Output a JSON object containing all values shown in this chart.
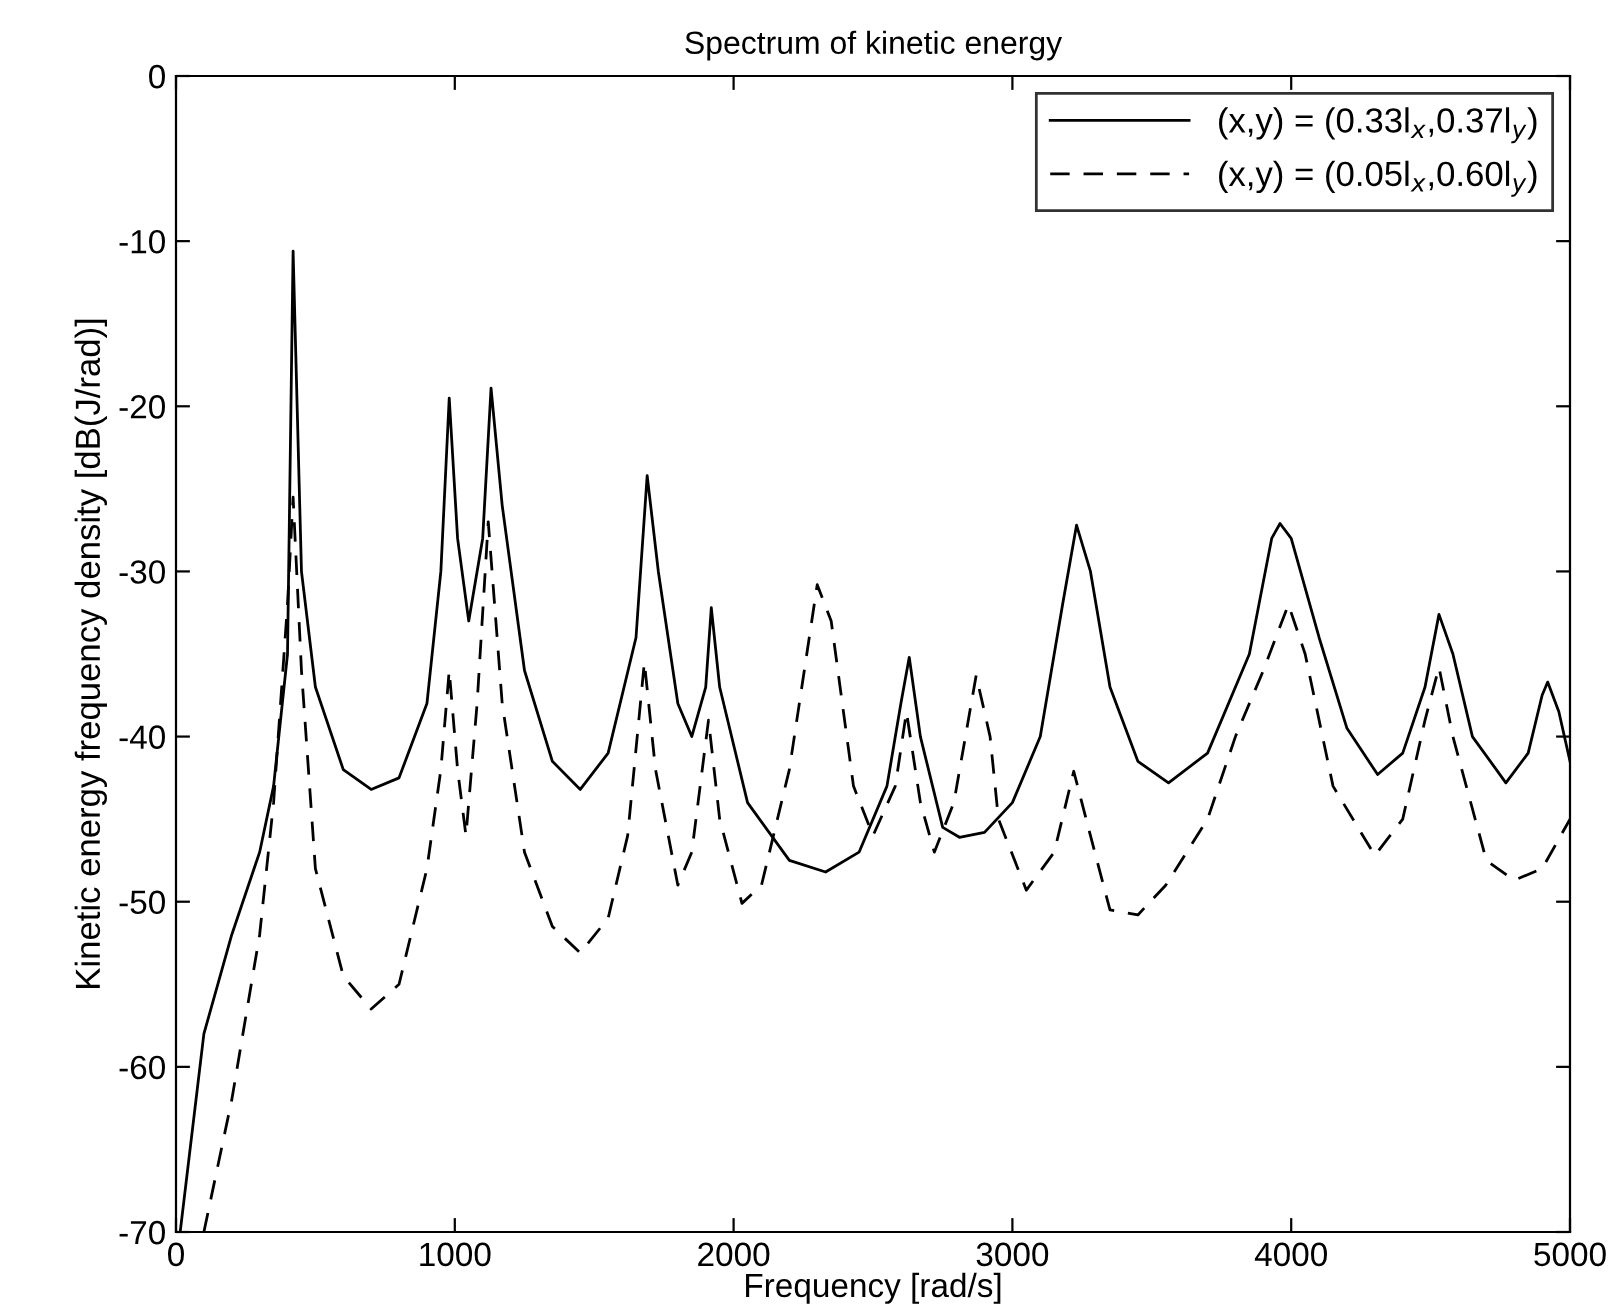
{
  "chart_data": {
    "type": "line",
    "title": "Spectrum of kinetic energy",
    "xlabel": "Frequency [rad/s]",
    "ylabel": "Kinetic energy frequency density [dB(J/rad)]",
    "xlim": [
      0,
      5000
    ],
    "ylim": [
      -70,
      0
    ],
    "xticks": [
      0,
      1000,
      2000,
      3000,
      4000,
      5000
    ],
    "yticks": [
      -70,
      -60,
      -50,
      -40,
      -30,
      -20,
      -10,
      0
    ],
    "grid": false,
    "legend": "top right",
    "series": [
      {
        "name": "(x,y) = (0.33l$_{x}$,0.37l$_{y}$)",
        "color": "#000000",
        "line_style": "solid",
        "x": [
          15,
          100,
          200,
          300,
          350,
          400,
          420,
          450,
          500,
          600,
          700,
          800,
          900,
          950,
          980,
          1010,
          1050,
          1100,
          1130,
          1170,
          1250,
          1350,
          1450,
          1550,
          1650,
          1690,
          1730,
          1800,
          1850,
          1900,
          1920,
          1950,
          2050,
          2200,
          2330,
          2450,
          2550,
          2600,
          2630,
          2670,
          2750,
          2810,
          2900,
          3000,
          3100,
          3180,
          3230,
          3280,
          3350,
          3450,
          3560,
          3700,
          3850,
          3930,
          3960,
          4000,
          4100,
          4200,
          4310,
          4400,
          4480,
          4530,
          4580,
          4650,
          4770,
          4850,
          4900,
          4920,
          4960,
          5000
        ],
        "values": [
          -70,
          -58,
          -52,
          -47,
          -43,
          -35,
          -10.6,
          -30,
          -37,
          -42,
          -43.2,
          -42.5,
          -38,
          -30,
          -19.5,
          -28,
          -33,
          -28,
          -18.9,
          -26,
          -36,
          -41.5,
          -43.2,
          -41,
          -34,
          -24.2,
          -30,
          -38,
          -40,
          -37,
          -32.2,
          -37,
          -44,
          -47.5,
          -48.2,
          -47,
          -43,
          -38,
          -35.2,
          -40,
          -45.5,
          -46.1,
          -45.8,
          -44,
          -40,
          -32,
          -27.2,
          -30,
          -37,
          -41.5,
          -42.8,
          -41,
          -35,
          -28,
          -27.1,
          -28,
          -34,
          -39.5,
          -42.3,
          -41,
          -37,
          -32.6,
          -35,
          -40,
          -42.8,
          -41,
          -37.5,
          -36.7,
          -38.5,
          -41.5
        ]
      },
      {
        "name": "(x,y) = (0.05l$_{x}$,0.60l$_{y}$)",
        "color": "#000000",
        "line_style": "dashed",
        "x": [
          100,
          200,
          300,
          350,
          400,
          420,
          450,
          500,
          600,
          700,
          800,
          900,
          950,
          980,
          1010,
          1040,
          1080,
          1120,
          1170,
          1250,
          1350,
          1450,
          1550,
          1620,
          1680,
          1720,
          1800,
          1850,
          1910,
          1950,
          2030,
          2100,
          2200,
          2300,
          2350,
          2430,
          2500,
          2580,
          2620,
          2670,
          2720,
          2790,
          2870,
          2920,
          2950,
          3050,
          3150,
          3220,
          3280,
          3350,
          3450,
          3550,
          3700,
          3800,
          3900,
          3990,
          4050,
          4150,
          4300,
          4400,
          4480,
          4530,
          4580,
          4700,
          4800,
          4900,
          5000
        ],
        "values": [
          -70,
          -62,
          -52,
          -44,
          -32,
          -25.5,
          -36,
          -48,
          -54.5,
          -56.5,
          -55,
          -48,
          -42,
          -36,
          -42,
          -46,
          -38,
          -27,
          -38,
          -47,
          -51.5,
          -53.1,
          -51,
          -46,
          -35.5,
          -42,
          -49,
          -47,
          -39,
          -45,
          -50.1,
          -49,
          -42,
          -30.8,
          -33,
          -43,
          -46,
          -43,
          -38.5,
          -44,
          -47,
          -44,
          -36.3,
          -40,
          -45,
          -49.3,
          -47,
          -42.1,
          -46,
          -50.5,
          -50.8,
          -49,
          -45,
          -40,
          -36,
          -32,
          -35,
          -43,
          -47.2,
          -45,
          -39,
          -35.8,
          -40,
          -47.5,
          -48.7,
          -48,
          -45
        ]
      }
    ]
  }
}
